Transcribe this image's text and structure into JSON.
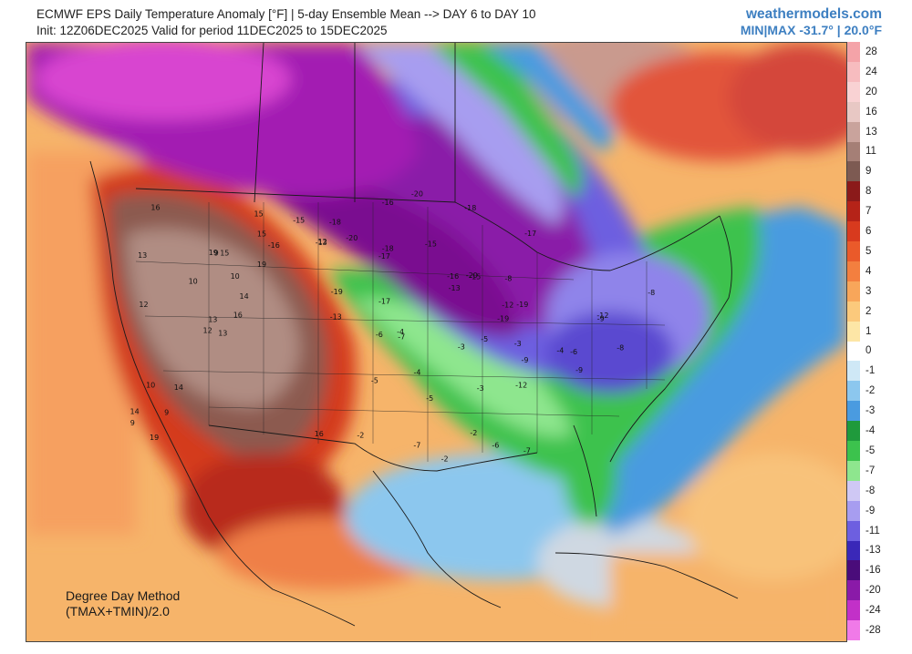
{
  "header": {
    "title": "ECMWF EPS Daily Temperature Anomaly [°F] | 5-day Ensemble Mean --> DAY 6 to DAY 10",
    "subtitle": "Init: 12Z06DEC2025 Valid for period 11DEC2025 to 15DEC2025",
    "brand": "weathermodels.com",
    "minmax": "MIN|MAX -31.7° | 20.0°F"
  },
  "method": {
    "line1": "Degree Day Method",
    "line2": "(TMAX+TMIN)/2.0"
  },
  "legend": [
    {
      "label": "28",
      "color": "#f4a3a8"
    },
    {
      "label": "24",
      "color": "#f7bcbf"
    },
    {
      "label": "20",
      "color": "#f9d2d3"
    },
    {
      "label": "16",
      "color": "#e8c8c4"
    },
    {
      "label": "13",
      "color": "#c9a39c"
    },
    {
      "label": "11",
      "color": "#a57f76"
    },
    {
      "label": "9",
      "color": "#7d5a52"
    },
    {
      "label": "8",
      "color": "#8b1a1a"
    },
    {
      "label": "7",
      "color": "#b52318"
    },
    {
      "label": "6",
      "color": "#d83a1e"
    },
    {
      "label": "5",
      "color": "#ea5a2a"
    },
    {
      "label": "4",
      "color": "#f37f3f"
    },
    {
      "label": "3",
      "color": "#f8a65a"
    },
    {
      "label": "2",
      "color": "#fbc97c"
    },
    {
      "label": "1",
      "color": "#fde6a6"
    },
    {
      "label": "0",
      "color": "#ffffff"
    },
    {
      "label": "-1",
      "color": "#cfe8f6"
    },
    {
      "label": "-2",
      "color": "#8cc7ee"
    },
    {
      "label": "-3",
      "color": "#4a9be0"
    },
    {
      "label": "-4",
      "color": "#1f9a3c"
    },
    {
      "label": "-5",
      "color": "#3cc24d"
    },
    {
      "label": "-7",
      "color": "#8ee68e"
    },
    {
      "label": "-8",
      "color": "#cfc8f4"
    },
    {
      "label": "-9",
      "color": "#a79df0"
    },
    {
      "label": "-11",
      "color": "#6d5fe0"
    },
    {
      "label": "-13",
      "color": "#3a28b8"
    },
    {
      "label": "-16",
      "color": "#4a0c7a"
    },
    {
      "label": "-20",
      "color": "#8a1aa8"
    },
    {
      "label": "-24",
      "color": "#c230c8"
    },
    {
      "label": "-28",
      "color": "#f07ae8"
    }
  ],
  "labels": [
    {
      "t": "13",
      "region": "west"
    },
    {
      "t": "14",
      "region": "west"
    },
    {
      "t": "15",
      "region": "west"
    },
    {
      "t": "16",
      "region": "west"
    },
    {
      "t": "12",
      "region": "west"
    },
    {
      "t": "19",
      "region": "west"
    },
    {
      "t": "10",
      "region": "west"
    },
    {
      "t": "9",
      "region": "west"
    },
    {
      "t": "-15",
      "region": "north"
    },
    {
      "t": "-16",
      "region": "north"
    },
    {
      "t": "-17",
      "region": "north"
    },
    {
      "t": "-18",
      "region": "north"
    },
    {
      "t": "-19",
      "region": "north"
    },
    {
      "t": "-20",
      "region": "north"
    },
    {
      "t": "-13",
      "region": "north"
    },
    {
      "t": "-12",
      "region": "east"
    },
    {
      "t": "-9",
      "region": "east"
    },
    {
      "t": "-8",
      "region": "east"
    },
    {
      "t": "-7",
      "region": "south"
    },
    {
      "t": "-6",
      "region": "south"
    },
    {
      "t": "-5",
      "region": "south"
    },
    {
      "t": "-4",
      "region": "south"
    },
    {
      "t": "-3",
      "region": "south"
    },
    {
      "t": "-2",
      "region": "south"
    }
  ]
}
